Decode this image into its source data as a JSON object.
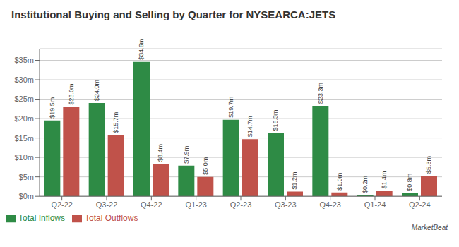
{
  "chart_data": {
    "type": "bar",
    "title": "Institutional Buying and Selling by Quarter for NYSEARCA:JETS",
    "categories": [
      "Q2-22",
      "Q3-22",
      "Q4-22",
      "Q1-23",
      "Q2-23",
      "Q3-23",
      "Q4-23",
      "Q1-24",
      "Q2-24"
    ],
    "series": [
      {
        "name": "Total Inflows",
        "color": "#2e8b45",
        "values": [
          19.5,
          24.0,
          34.6,
          7.9,
          19.7,
          16.3,
          23.3,
          0.2,
          0.8
        ],
        "value_labels": [
          "$19.5m",
          "$24.0m",
          "$34.6m",
          "$7.9m",
          "$19.7m",
          "$16.3m",
          "$23.3m",
          "$0.2m",
          "$0.8m"
        ]
      },
      {
        "name": "Total Outflows",
        "color": "#c0524a",
        "values": [
          23.0,
          15.7,
          8.4,
          5.0,
          14.7,
          1.2,
          1.0,
          1.4,
          5.3
        ],
        "value_labels": [
          "$23.0m",
          "$15.7m",
          "$8.4m",
          "$5.0m",
          "$14.7m",
          "$1.2m",
          "$1.0m",
          "$1.4m",
          "$5.3m"
        ]
      }
    ],
    "ylim": [
      0,
      38
    ],
    "yticks": [
      {
        "value": 0,
        "label": "$0m"
      },
      {
        "value": 5,
        "label": "$5m"
      },
      {
        "value": 10,
        "label": "$10m"
      },
      {
        "value": 15,
        "label": "$15m"
      },
      {
        "value": 20,
        "label": "$20m"
      },
      {
        "value": 25,
        "label": "$25m"
      },
      {
        "value": 30,
        "label": "$30m"
      },
      {
        "value": 35,
        "label": "$35m"
      }
    ],
    "grid": true,
    "legend": "bottom",
    "data_labels": true,
    "annotations": [
      "MarketBeat"
    ]
  }
}
